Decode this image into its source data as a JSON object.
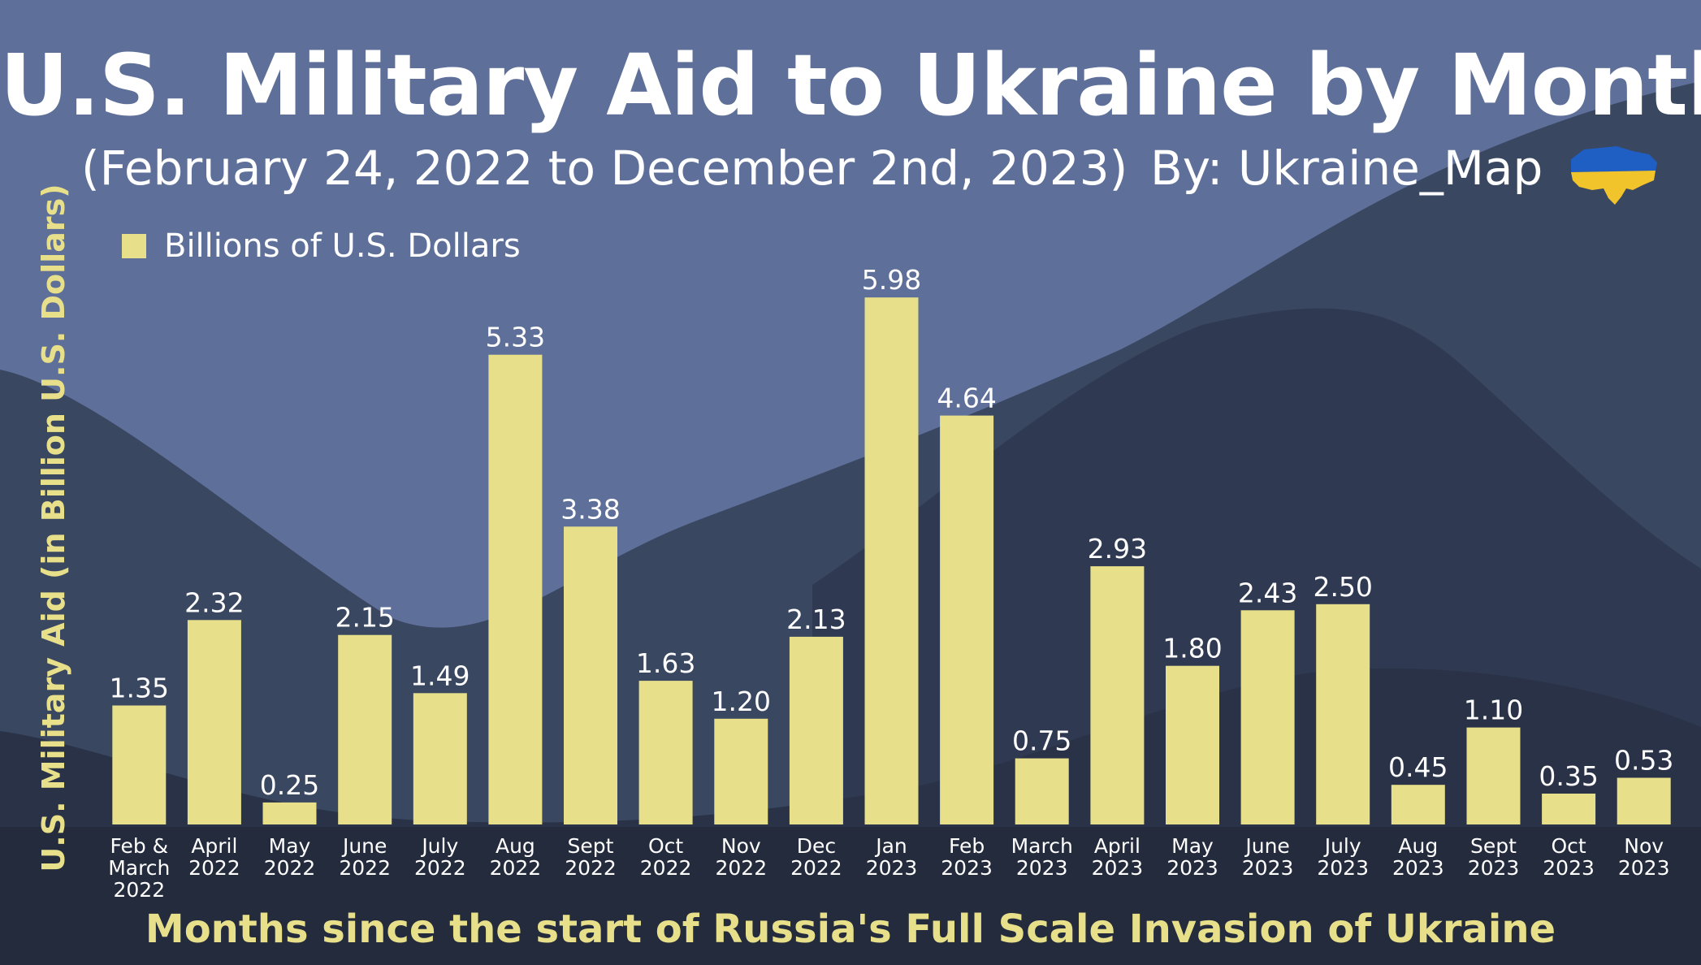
{
  "header": {
    "title": "U.S. Military Aid to Ukraine by Month",
    "subtitle": "(February 24, 2022 to December 2nd, 2023)",
    "byline": "By: Ukraine_Map"
  },
  "flag_icon": "ukraine-map-flag-icon",
  "colors": {
    "bar": "#e7df8a",
    "axis_title": "#e7df8a",
    "text": "#ffffff",
    "bg_light": "#5e6f99",
    "bg_mid": "#3a4761",
    "bg_dark": "#293247",
    "flag_blue": "#1f5fc4",
    "flag_yellow": "#f2c42b"
  },
  "chart_data": {
    "type": "bar",
    "title": "U.S. Military Aid to Ukraine by Month",
    "subtitle": "(February 24, 2022 to December 2nd, 2023)",
    "xlabel": "Months since the start of Russia's Full Scale Invasion of Ukraine",
    "ylabel": "U.S. Military Aid (in Billion U.S. Dollars)",
    "legend": {
      "position": "top-left",
      "entries": [
        "Billions of U.S. Dollars"
      ]
    },
    "ylim": [
      0,
      6.5
    ],
    "grid": false,
    "categories": [
      [
        "Feb &",
        "March",
        "2022"
      ],
      [
        "April",
        "2022"
      ],
      [
        "May",
        "2022"
      ],
      [
        "June",
        "2022"
      ],
      [
        "July",
        "2022"
      ],
      [
        "Aug",
        "2022"
      ],
      [
        "Sept",
        "2022"
      ],
      [
        "Oct",
        "2022"
      ],
      [
        "Nov",
        "2022"
      ],
      [
        "Dec",
        "2022"
      ],
      [
        "Jan",
        "2023"
      ],
      [
        "Feb",
        "2023"
      ],
      [
        "March",
        "2023"
      ],
      [
        "April",
        "2023"
      ],
      [
        "May",
        "2023"
      ],
      [
        "June",
        "2023"
      ],
      [
        "July",
        "2023"
      ],
      [
        "Aug",
        "2023"
      ],
      [
        "Sept",
        "2023"
      ],
      [
        "Oct",
        "2023"
      ],
      [
        "Nov",
        "2023"
      ]
    ],
    "series": [
      {
        "name": "Billions of U.S. Dollars",
        "values": [
          1.35,
          2.32,
          0.25,
          2.15,
          1.49,
          5.33,
          3.38,
          1.63,
          1.2,
          2.13,
          5.98,
          4.64,
          0.75,
          2.93,
          1.8,
          2.43,
          2.5,
          0.45,
          1.1,
          0.35,
          0.53
        ],
        "labels": [
          "1.35",
          "2.32",
          "0.25",
          "2.15",
          "1.49",
          "5.33",
          "3.38",
          "1.63",
          "1.20",
          "2.13",
          "5.98",
          "4.64",
          "0.75",
          "2.93",
          "1.80",
          "2.43",
          "2.50",
          "0.45",
          "1.10",
          "0.35",
          "0.53"
        ]
      }
    ]
  }
}
